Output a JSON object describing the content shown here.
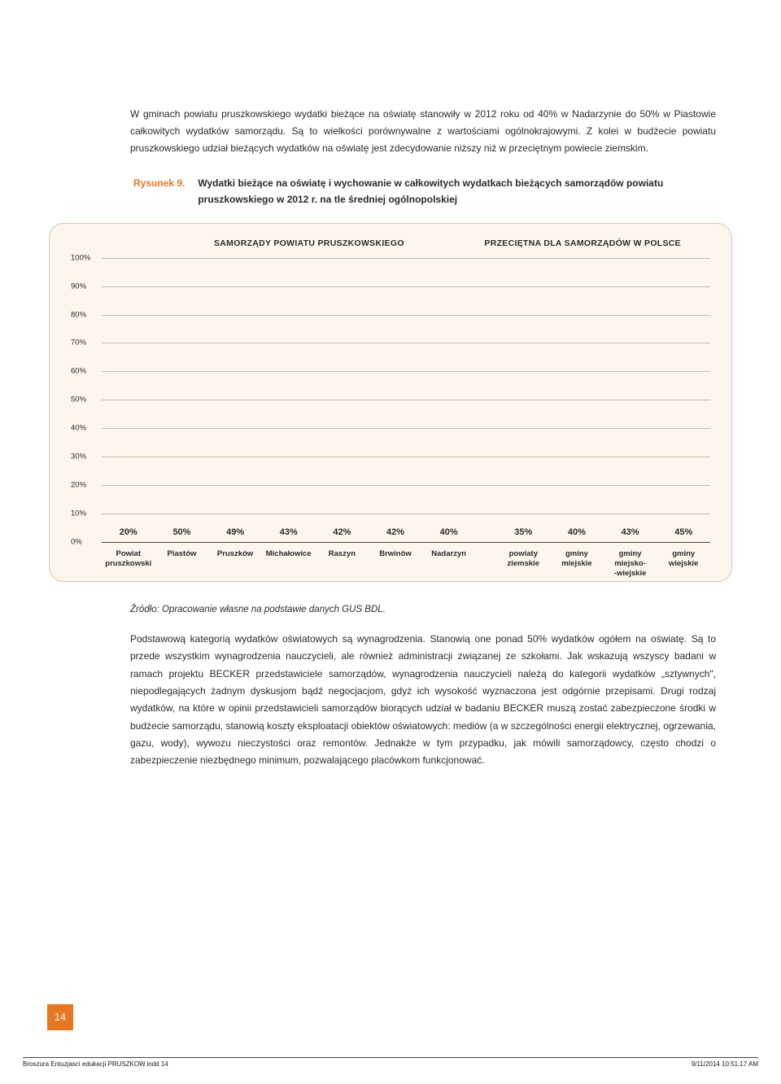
{
  "paragraph_top": "W gminach powiatu pruszkowskiego wydatki bieżące na oświatę stanowiły w 2012 roku od 40% w Nadarzynie do 50% w Piastowie całkowitych wydatków samorządu. Są to wielkości porównywalne z wartościami ogólnokrajowymi. Z kolei w budżecie powiatu pruszkowskiego udział bieżących wydatków na oświatę jest zdecydowanie niższy niż w przeciętnym powiecie ziemskim.",
  "figure": {
    "label": "Rysunek 9.",
    "title": "Wydatki bieżące na oświatę i wychowanie w całkowitych wydatkach bieżących samorządów powiatu pruszkowskiego w 2012 r. na tle średniej ogólnopolskiej",
    "legend_left": "SAMORZĄDY POWIATU PRUSZKOWSKIEGO",
    "legend_right": "PRZECIĘTNA DLA SAMORZĄDÓW W POLSCE",
    "ylabels": [
      "100%",
      "90%",
      "80%",
      "70%",
      "60%",
      "50%",
      "40%",
      "30%",
      "20%",
      "10%",
      "0%"
    ],
    "ylim": [
      0,
      100
    ],
    "ytick_step": 10,
    "bar_color_a": "#f28c26",
    "bar_color_b": "#f9b168",
    "grid_color": "#c9bea6",
    "background_color": "#fdf6ed",
    "group_a": [
      {
        "label": "Powiat\npruszkowski",
        "value": 20,
        "lbl": "20%"
      },
      {
        "label": "Piastów",
        "value": 50,
        "lbl": "50%"
      },
      {
        "label": "Pruszków",
        "value": 49,
        "lbl": "49%"
      },
      {
        "label": "Michałowice",
        "value": 43,
        "lbl": "43%"
      },
      {
        "label": "Raszyn",
        "value": 42,
        "lbl": "42%"
      },
      {
        "label": "Brwinów",
        "value": 42,
        "lbl": "42%"
      },
      {
        "label": "Nadarzyn",
        "value": 40,
        "lbl": "40%"
      }
    ],
    "group_b": [
      {
        "label": "powiaty\nziemskie",
        "value": 35,
        "lbl": "35%"
      },
      {
        "label": "gminy\nmiejskie",
        "value": 40,
        "lbl": "40%"
      },
      {
        "label": "gminy\nmiejsko-\n-wiejskie",
        "value": 43,
        "lbl": "43%"
      },
      {
        "label": "gminy\nwiejskie",
        "value": 45,
        "lbl": "45%"
      }
    ]
  },
  "source": "Źródło: Opracowanie własne na podstawie danych GUS BDL.",
  "paragraph_bottom": "Podstawową kategorią wydatków oświatowych są wynagrodzenia. Stanowią one ponad 50% wydatków ogółem na oświatę. Są to przede wszystkim wynagrodzenia nauczycieli, ale również administracji związanej ze szkołami. Jak wskazują wszyscy badani w ramach projektu BECKER przedstawiciele samorządów, wynagrodzenia nauczycieli należą do kategorii wydatków „sztywnych\", niepodlegających żadnym dyskusjom bądź negocjacjom, gdyż ich wysokość wyznaczona jest odgórnie przepisami. Drugi rodzaj wydatków, na które w opinii przedstawicieli samorządów biorących udział w badaniu BECKER muszą zostać zabezpieczone środki w budżecie samorządu, stanowią koszty eksploatacji obiektów oświatowych: mediów (a w szczególności energii elektrycznej, ogrzewania, gazu, wody), wywozu nieczystości oraz remontów. Jednakże w tym przypadku, jak mówili samorządowcy, często chodzi o zabezpieczenie niezbędnego minimum, pozwalającego placówkom funkcjonować.",
  "page_number": "14",
  "footer_left": "Broszura Entuzjasci edukacji PRUSZKOW.indd   14",
  "footer_right": "9/11/2014   10:51:17 AM"
}
